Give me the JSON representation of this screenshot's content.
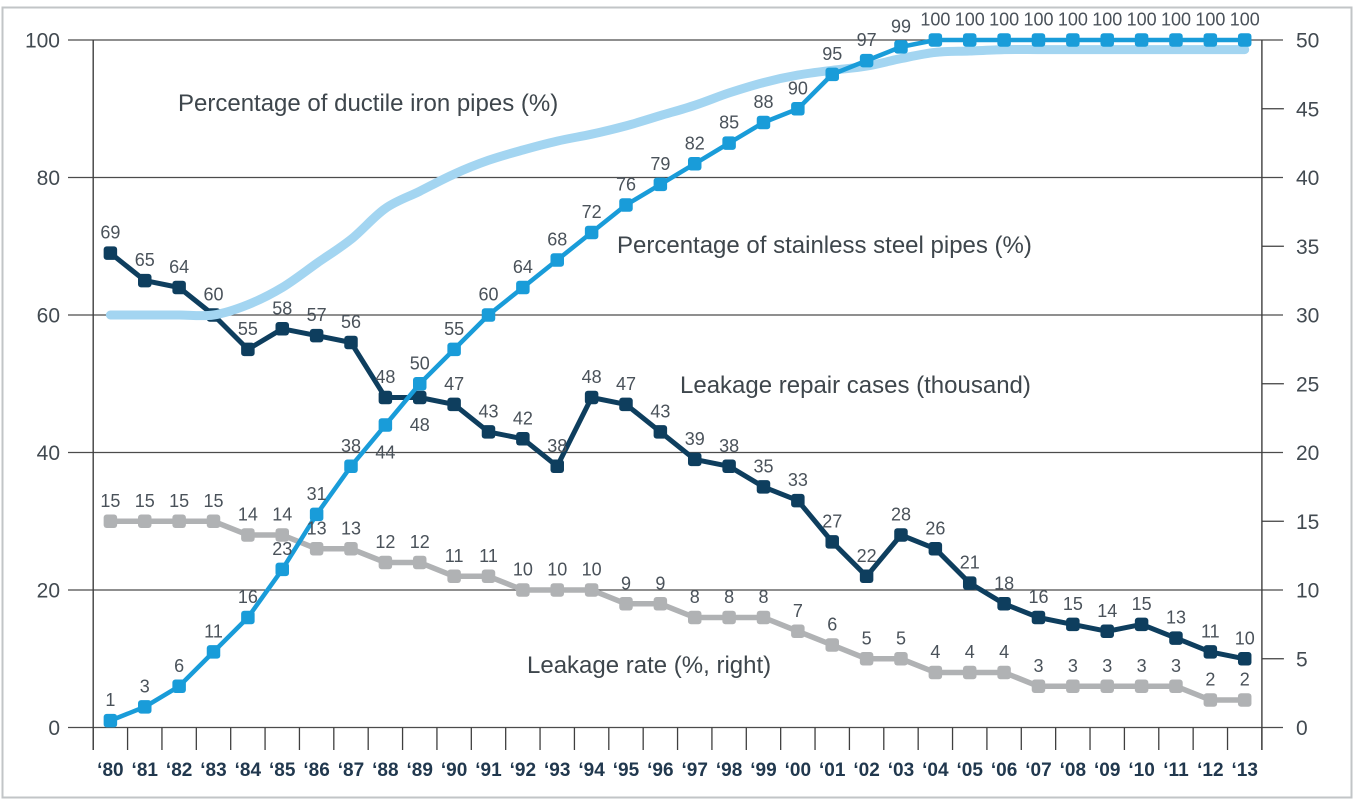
{
  "theme": {
    "background": "#ffffff",
    "frame_border": "#c2c5c7",
    "grid_color": "#4c4c4c",
    "axis_color": "#3f3f3f",
    "tick_label_color": "#424a51",
    "year_label_color": "#21384e",
    "data_label_color": "#4a525a",
    "annotation_color": "#3e464c"
  },
  "chart_data": {
    "type": "line",
    "title": "",
    "x_categories": [
      "‘80",
      "‘81",
      "‘82",
      "‘83",
      "‘84",
      "‘85",
      "‘86",
      "‘87",
      "‘88",
      "‘89",
      "‘90",
      "‘91",
      "‘92",
      "‘93",
      "‘94",
      "‘95",
      "‘96",
      "‘97",
      "‘98",
      "‘99",
      "‘00",
      "‘01",
      "‘02",
      "‘03",
      "‘04",
      "‘05",
      "‘06",
      "‘07",
      "‘08",
      "‘09",
      "‘10",
      "‘11",
      "‘12",
      "‘13"
    ],
    "axes": {
      "left": {
        "min": 0,
        "max": 100,
        "ticks": [
          0,
          20,
          40,
          60,
          80,
          100
        ]
      },
      "right": {
        "min": 0,
        "max": 50,
        "ticks": [
          0,
          5,
          10,
          15,
          20,
          25,
          30,
          35,
          40,
          45,
          50
        ]
      }
    },
    "grid": true,
    "legend_position": "inline-annotations",
    "series": [
      {
        "id": "repair",
        "name": "Leakage repair cases (thousand)",
        "axis": "left",
        "color": "#0e3e5e",
        "stroke_width": 5,
        "smooth": false,
        "show_markers": true,
        "show_labels": true,
        "values": [
          69,
          65,
          64,
          60,
          55,
          58,
          57,
          56,
          48,
          48,
          47,
          43,
          42,
          38,
          48,
          47,
          43,
          39,
          38,
          35,
          33,
          27,
          22,
          28,
          26,
          21,
          18,
          16,
          15,
          14,
          15,
          13,
          11,
          10
        ],
        "label_dy_overrides": {
          "9": 27
        }
      },
      {
        "id": "ductile",
        "name": "Percentage of ductile iron pipes (%)",
        "axis": "left",
        "color": "#a3d5f1",
        "stroke_width": 9,
        "smooth": true,
        "show_markers": false,
        "show_labels": false,
        "estimated_from_curve": true,
        "values": [
          60,
          60,
          60,
          60,
          61.5,
          64,
          67.5,
          71,
          75.5,
          78,
          80.5,
          82.5,
          84,
          85.3,
          86.3,
          87.5,
          89,
          90.5,
          92.3,
          93.8,
          94.9,
          95.6,
          96.2,
          97.3,
          98.2,
          98.4,
          98.6,
          98.6,
          98.6,
          98.6,
          98.6,
          98.6,
          98.6,
          98.6
        ]
      },
      {
        "id": "leakage_rate",
        "name": "Leakage rate (%, right)",
        "axis": "right",
        "color": "#b0b2b4",
        "stroke_width": 5.5,
        "smooth": false,
        "show_markers": true,
        "show_labels": true,
        "values": [
          15,
          15,
          15,
          15,
          14,
          14,
          13,
          13,
          12,
          12,
          11,
          11,
          10,
          10,
          10,
          9,
          9,
          8,
          8,
          8,
          7,
          6,
          5,
          5,
          4,
          4,
          4,
          3,
          3,
          3,
          3,
          3,
          2,
          2
        ]
      },
      {
        "id": "stainless",
        "name": "Percentage of stainless steel pipes (%)",
        "axis": "left",
        "color": "#199cd9",
        "stroke_width": 4.5,
        "smooth": false,
        "show_markers": true,
        "show_labels": true,
        "values": [
          1,
          3,
          6,
          11,
          16,
          23,
          31,
          38,
          44,
          50,
          55,
          60,
          64,
          68,
          72,
          76,
          79,
          82,
          85,
          88,
          90,
          95,
          97,
          99,
          100,
          100,
          100,
          100,
          100,
          100,
          100,
          100,
          100,
          100
        ],
        "label_dy_overrides": {
          "8": 27
        }
      }
    ],
    "annotations": [
      {
        "id": "ductile-series-label",
        "text": "Percentage of ductile iron pipes (%)",
        "x": 178,
        "y": 111
      },
      {
        "id": "stainless-series-label",
        "text": "Percentage of stainless steel pipes (%)",
        "x": 617,
        "y": 253
      },
      {
        "id": "repair-series-label",
        "text": "Leakage repair cases (thousand)",
        "x": 680,
        "y": 393
      },
      {
        "id": "rate-series-label",
        "text": "Leakage rate (%, right)",
        "x": 527,
        "y": 673
      }
    ]
  }
}
